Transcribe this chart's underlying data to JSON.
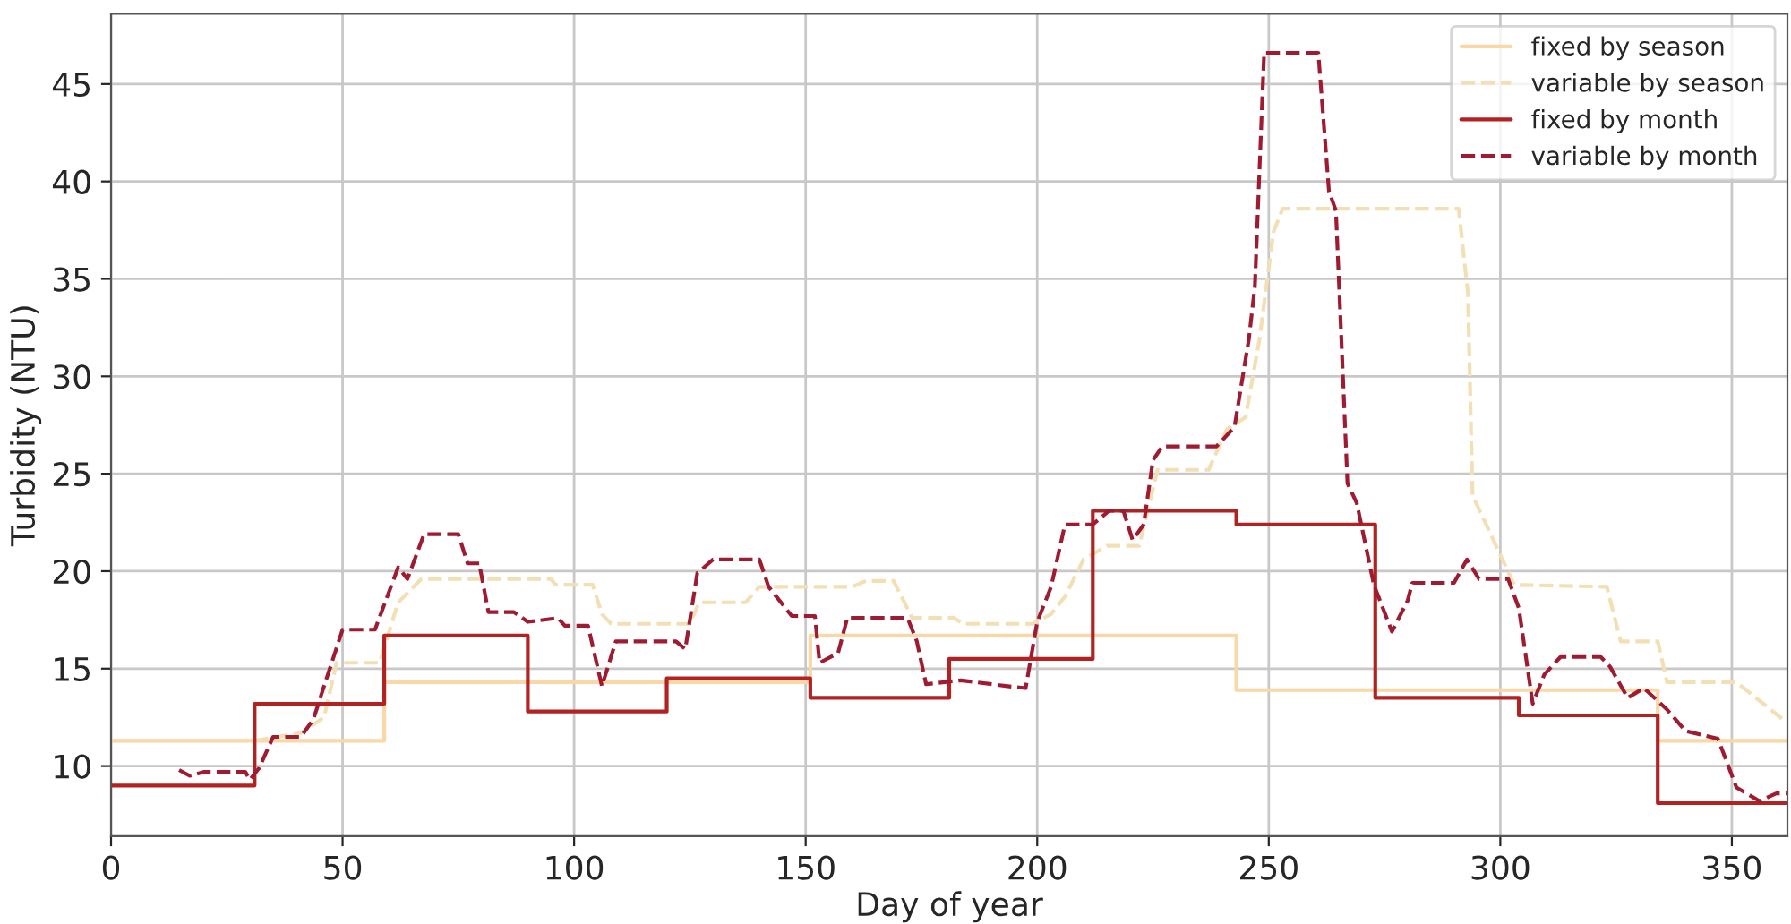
{
  "chart_data": {
    "type": "line",
    "xlabel": "Day of year",
    "ylabel": "Turbidity (NTU)",
    "xlim": [
      0,
      362
    ],
    "ylim": [
      6.4,
      48.6
    ],
    "xticks": [
      0,
      50,
      100,
      150,
      200,
      250,
      300,
      350
    ],
    "yticks": [
      10,
      15,
      20,
      25,
      30,
      35,
      40,
      45
    ],
    "grid": true,
    "legend": "top right",
    "series": [
      {
        "name": "fixed by season",
        "type": "step",
        "color": "#f9d7a6",
        "line_style": "solid",
        "x": [
          0,
          59,
          151,
          243,
          334,
          362
        ],
        "values": [
          11.3,
          14.3,
          16.7,
          13.9,
          11.3,
          11.3
        ]
      },
      {
        "name": "variable by season",
        "color": "#f2dfb3",
        "line_style": "dashed",
        "x": [
          31,
          41,
          46,
          48.7,
          58,
          62,
          67,
          95,
          96,
          104,
          106,
          108,
          120,
          125,
          127,
          137,
          140,
          160,
          163,
          169,
          173,
          182,
          184,
          199,
          203,
          206,
          210,
          215,
          222,
          226,
          237,
          241,
          245,
          248,
          251,
          253,
          291,
          293,
          294,
          303,
          323,
          326,
          334,
          336,
          351,
          361,
          362
        ],
        "values": [
          11.3,
          11.7,
          12.5,
          15.3,
          15.3,
          18.4,
          19.6,
          19.6,
          19.3,
          19.3,
          17.8,
          17.3,
          17.3,
          17.3,
          18.4,
          18.4,
          19.2,
          19.2,
          19.5,
          19.5,
          17.6,
          17.6,
          17.3,
          17.3,
          17.8,
          18.7,
          20.6,
          21.3,
          21.3,
          25.2,
          25.2,
          27.3,
          27.9,
          31.9,
          37.4,
          38.6,
          38.6,
          34.3,
          23.9,
          19.3,
          19.2,
          16.4,
          16.4,
          14.3,
          14.3,
          12.4,
          12.4
        ]
      },
      {
        "name": "fixed by month",
        "type": "step",
        "color": "#b22222",
        "line_style": "solid",
        "x": [
          0,
          31,
          59,
          90,
          120,
          151,
          181,
          212,
          243,
          273,
          304,
          334,
          362
        ],
        "values": [
          9.0,
          13.2,
          16.7,
          12.8,
          14.5,
          13.5,
          15.5,
          23.1,
          22.4,
          13.5,
          12.6,
          8.1,
          8.1
        ]
      },
      {
        "name": "variable by month",
        "color": "#9e1b32",
        "line_style": "dashed",
        "x": [
          14.7,
          17,
          20,
          29,
          30,
          32,
          35,
          41,
          43.7,
          46,
          50,
          57,
          62,
          64,
          67.6,
          75,
          77,
          79.5,
          81.5,
          87,
          90,
          96.5,
          98,
          103,
          106,
          109,
          122,
          124,
          126.6,
          130,
          140,
          142,
          147,
          152,
          153,
          157,
          159,
          172,
          174,
          176,
          183.5,
          193.6,
          197.5,
          200,
          203,
          206,
          212,
          215.5,
          218.6,
          220.6,
          223,
          225,
          227,
          238.7,
          242.6,
          245.7,
          247,
          249,
          260.7,
          263,
          264.5,
          267,
          269,
          272.7,
          276.6,
          280,
          281,
          290,
          292.8,
          295.4,
          301.7,
          304,
          307,
          309.5,
          313,
          321.7,
          323.7,
          327.5,
          331,
          336,
          340,
          347,
          351,
          356,
          359.6,
          362
        ],
        "values": [
          9.8,
          9.5,
          9.7,
          9.7,
          9.3,
          9.9,
          11.5,
          11.5,
          12.4,
          14.1,
          17.0,
          17.0,
          20.2,
          19.6,
          21.9,
          21.9,
          20.4,
          20.4,
          17.9,
          17.9,
          17.4,
          17.6,
          17.2,
          17.2,
          14.1,
          16.4,
          16.4,
          16.0,
          19.9,
          20.6,
          20.6,
          19.2,
          17.7,
          17.7,
          15.3,
          15.8,
          17.6,
          17.6,
          16.4,
          14.2,
          14.4,
          14.1,
          14.0,
          17.4,
          19.2,
          22.4,
          22.4,
          23.1,
          23.1,
          21.6,
          22.4,
          25.7,
          26.4,
          26.4,
          27.4,
          31.9,
          34.6,
          46.6,
          46.6,
          39.5,
          38.5,
          24.5,
          23.5,
          19.3,
          16.9,
          18.5,
          19.4,
          19.4,
          20.6,
          19.6,
          19.6,
          18.1,
          13.2,
          14.7,
          15.6,
          15.6,
          15.1,
          13.5,
          14.0,
          12.9,
          11.8,
          11.4,
          8.9,
          8.2,
          8.6,
          8.6
        ]
      }
    ]
  }
}
